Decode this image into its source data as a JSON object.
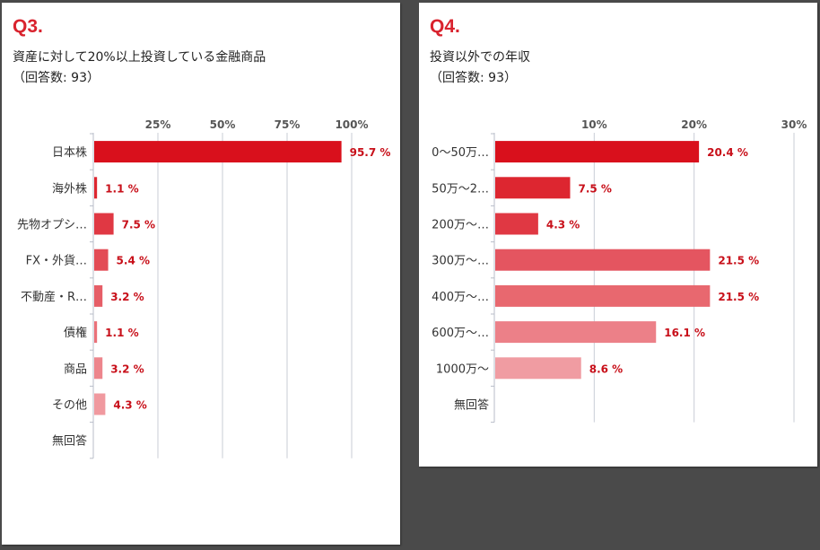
{
  "chart_data": [
    {
      "type": "bar",
      "orientation": "horizontal",
      "question_number": "Q3.",
      "title": "資産に対して20%以上投資している金融商品",
      "subtitle": "（回答数: 93）",
      "categories": [
        "日本株",
        "海外株",
        "先物オプシ…",
        "FX・外貨…",
        "不動産・R…",
        "債権",
        "商品",
        "その他",
        "無回答"
      ],
      "values": [
        95.7,
        1.1,
        7.5,
        5.4,
        3.2,
        1.1,
        3.2,
        4.3,
        0
      ],
      "value_labels": [
        "95.7 %",
        "1.1 %",
        "7.5 %",
        "5.4 %",
        "3.2 %",
        "1.1 %",
        "3.2 %",
        "4.3 %",
        ""
      ],
      "xlim": [
        0,
        100
      ],
      "xticks": [
        25,
        50,
        75,
        100
      ],
      "xtick_labels": [
        "25%",
        "50%",
        "75%",
        "100%"
      ],
      "grid": true,
      "bar_colors": [
        "#d9101c",
        "#dd2630",
        "#e03843",
        "#e34b55",
        "#e65e67",
        "#ea7179",
        "#ed858c",
        "#f0999f",
        "#f4adb2"
      ],
      "label_color": "#c8101a"
    },
    {
      "type": "bar",
      "orientation": "horizontal",
      "question_number": "Q4.",
      "title": "投資以外での年収",
      "subtitle": "（回答数: 93）",
      "categories": [
        "0〜50万…",
        "50万〜2…",
        "200万〜…",
        "300万〜…",
        "400万〜…",
        "600万〜…",
        "1000万〜",
        "無回答"
      ],
      "values": [
        20.4,
        7.5,
        4.3,
        21.5,
        21.5,
        16.1,
        8.6,
        0
      ],
      "value_labels": [
        "20.4 %",
        "7.5 %",
        "4.3 %",
        "21.5 %",
        "21.5 %",
        "16.1 %",
        "8.6 %",
        ""
      ],
      "xlim": [
        0,
        30
      ],
      "xticks": [
        10,
        20,
        30
      ],
      "xtick_labels": [
        "10%",
        "20%",
        "30%"
      ],
      "grid": true,
      "bar_colors": [
        "#d9101c",
        "#dd2630",
        "#e03843",
        "#e45560",
        "#e8686f",
        "#ec8088",
        "#f09ca2",
        "#f4b4b8"
      ],
      "label_color": "#c8101a"
    }
  ]
}
